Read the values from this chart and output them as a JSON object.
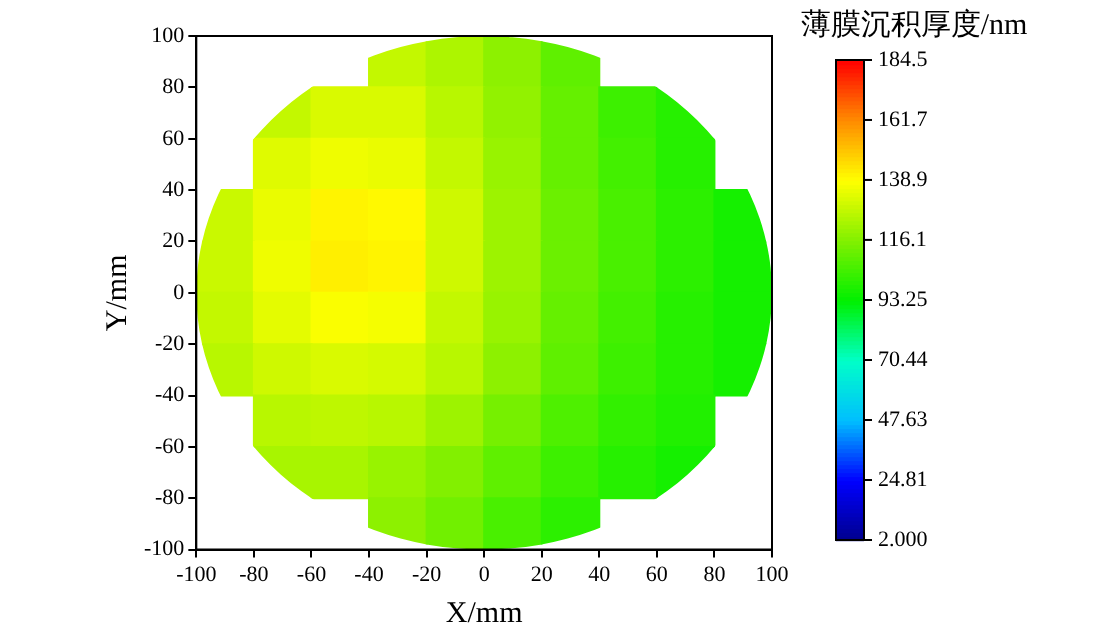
{
  "chart_data": {
    "type": "heatmap",
    "xlabel": "X/mm",
    "ylabel": "Y/mm",
    "clabel": "薄膜沉积厚度/nm",
    "x": [
      -90,
      -70,
      -50,
      -30,
      -10,
      10,
      30,
      50,
      70,
      90
    ],
    "y": [
      90,
      70,
      50,
      30,
      10,
      -10,
      -30,
      -50,
      -70,
      -90
    ],
    "cells": [
      [
        null,
        null,
        null,
        128,
        124,
        118,
        110,
        null,
        null,
        null
      ],
      [
        null,
        128,
        132,
        132,
        126,
        119,
        111,
        104,
        100,
        null
      ],
      [
        null,
        133,
        136,
        135,
        128,
        120,
        111,
        105,
        100,
        null
      ],
      [
        129,
        135,
        141,
        140,
        130,
        121,
        112,
        106,
        101,
        97
      ],
      [
        129,
        136,
        142,
        141,
        130,
        121,
        112,
        106,
        101,
        97
      ],
      [
        128,
        134,
        138,
        137,
        128,
        120,
        111,
        105,
        100,
        97
      ],
      [
        126,
        130,
        132,
        131,
        126,
        118,
        110,
        104,
        100,
        97
      ],
      [
        null,
        126,
        127,
        126,
        121,
        114,
        107,
        102,
        99,
        null
      ],
      [
        null,
        123,
        123,
        120,
        116,
        110,
        104,
        100,
        97,
        null
      ],
      [
        null,
        null,
        null,
        118,
        113,
        106,
        101,
        null,
        null,
        null
      ]
    ],
    "xlim": [
      -100,
      100
    ],
    "xticks": [
      -100,
      -80,
      -60,
      -40,
      -20,
      0,
      20,
      40,
      60,
      80,
      100
    ],
    "ylim": [
      -100,
      100
    ],
    "yticks": [
      -100,
      -80,
      -60,
      -40,
      -20,
      0,
      20,
      40,
      60,
      80,
      100
    ],
    "clim": [
      2,
      184.5
    ],
    "cticks": [
      {
        "value": 2,
        "label": "2.000"
      },
      24.81,
      47.63,
      70.44,
      93.25,
      116.1,
      138.9,
      161.7,
      184.5
    ]
  }
}
